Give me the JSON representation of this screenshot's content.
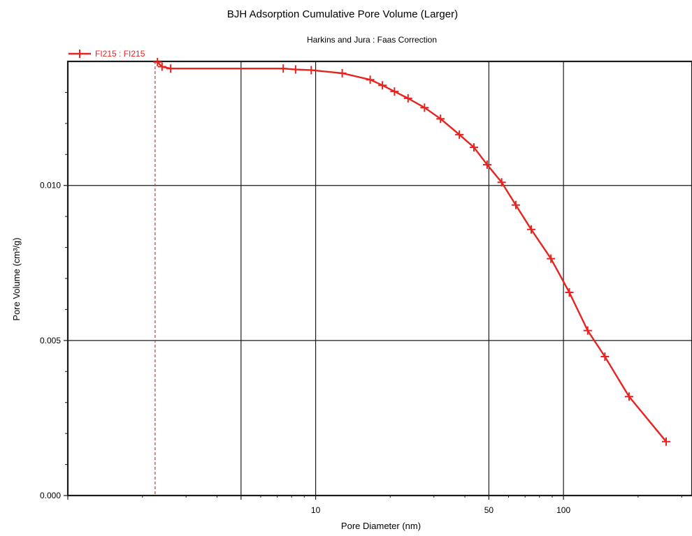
{
  "chart_data": {
    "type": "line",
    "title": "BJH Adsorption Cumulative Pore Volume (Larger)",
    "subtitle": "Harkins and Jura : Faas Correction",
    "xlabel": "Pore Diameter (nm)",
    "ylabel": "Pore Volume (cm³/g)",
    "x_scale": "log",
    "xlim": [
      1,
      330
    ],
    "ylim": [
      0.0,
      0.014
    ],
    "x_ticks": [
      {
        "value": 1,
        "label": ""
      },
      {
        "value": 5,
        "label": ""
      },
      {
        "value": 10,
        "label": "10"
      },
      {
        "value": 50,
        "label": "50"
      },
      {
        "value": 100,
        "label": "100"
      }
    ],
    "y_ticks": [
      {
        "value": 0.0,
        "label": "0.000"
      },
      {
        "value": 0.005,
        "label": "0.005"
      },
      {
        "value": 0.01,
        "label": "0.010"
      }
    ],
    "grid": true,
    "legend_position": "top-left",
    "reference_line": {
      "x": 2.25
    },
    "series": [
      {
        "name": "FI215 : FI215",
        "color": "#e8231f",
        "marker": "plus",
        "x": [
          2.3,
          2.4,
          2.6,
          7.4,
          8.3,
          9.6,
          12.8,
          16.6,
          18.6,
          20.8,
          23.6,
          27.5,
          31.9,
          38.0,
          43.5,
          49.2,
          56.3,
          64.2,
          74.1,
          89.0,
          105.6,
          125.2,
          146.9,
          183.9,
          259.5
        ],
        "y": [
          0.01398,
          0.01383,
          0.01377,
          0.01377,
          0.01374,
          0.01372,
          0.01362,
          0.01341,
          0.01323,
          0.01303,
          0.01281,
          0.01251,
          0.01215,
          0.01164,
          0.01123,
          0.01067,
          0.0101,
          0.00937,
          0.00858,
          0.00764,
          0.00655,
          0.00532,
          0.00448,
          0.00319,
          0.00174
        ]
      }
    ]
  }
}
